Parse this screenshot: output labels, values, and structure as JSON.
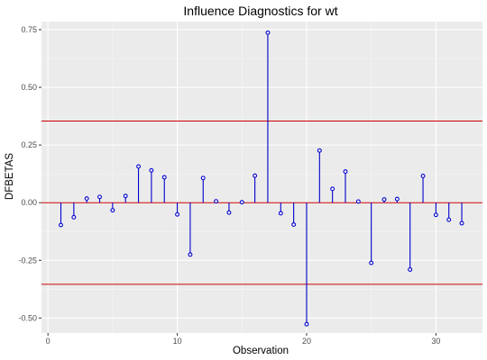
{
  "colors": {
    "panel": "#ebebeb",
    "grid_major": "#ffffff",
    "grid_minor": "#f5f5f5",
    "stem": "#0000cc",
    "point": "#0000cc",
    "threshold": "#cc0000",
    "zero_line": "#cc0000"
  },
  "chart_data": {
    "type": "scatter",
    "title": "Influence Diagnostics for wt",
    "xlabel": "Observation",
    "ylabel": "DFBETAS",
    "xlim": [
      -0.5,
      33.6
    ],
    "ylim": [
      -0.565,
      0.785
    ],
    "x_ticks": [
      0,
      10,
      20,
      30
    ],
    "x_tick_labels": [
      "0",
      "10",
      "20",
      "30"
    ],
    "y_ticks": [
      -0.5,
      -0.25,
      0.0,
      0.25,
      0.5,
      0.75
    ],
    "y_tick_labels": [
      "-0.50",
      "-0.25",
      "0.00",
      "0.25",
      "0.50",
      "0.75"
    ],
    "thresholds": [
      0.354,
      -0.354
    ],
    "grid": true,
    "x": [
      1,
      2,
      3,
      4,
      5,
      6,
      7,
      8,
      9,
      10,
      11,
      12,
      13,
      14,
      15,
      16,
      17,
      18,
      19,
      20,
      21,
      22,
      23,
      24,
      25,
      26,
      27,
      28,
      29,
      30,
      31,
      32
    ],
    "y": [
      -0.097,
      -0.063,
      0.018,
      0.025,
      -0.033,
      0.029,
      0.157,
      0.14,
      0.11,
      -0.051,
      -0.225,
      0.107,
      0.006,
      -0.043,
      0.002,
      0.117,
      0.737,
      -0.046,
      -0.095,
      -0.527,
      0.226,
      0.06,
      0.135,
      0.005,
      -0.261,
      0.014,
      0.016,
      -0.29,
      0.116,
      -0.053,
      -0.074,
      -0.089
    ]
  }
}
